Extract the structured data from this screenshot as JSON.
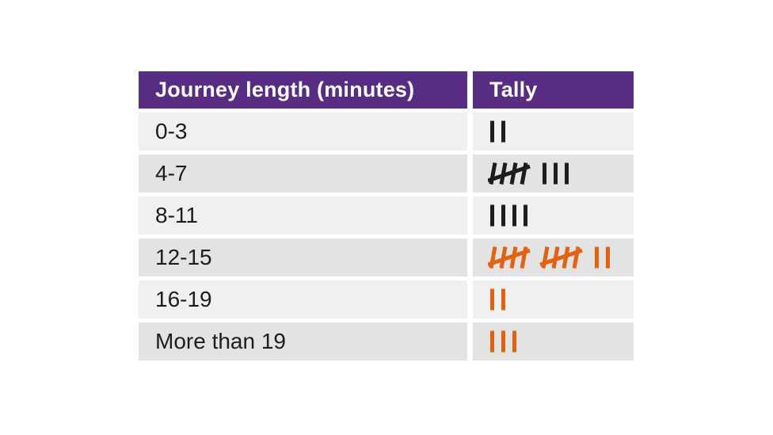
{
  "colors": {
    "header_bg": "#582c83",
    "header_text": "#ffffff",
    "black": "#1d1d1b",
    "orange": "#e4620f",
    "row_light": "#f0f0f1",
    "row_dark": "#e3e3e3"
  },
  "table": {
    "headers": [
      "Journey length (minutes)",
      "Tally"
    ],
    "rows": [
      {
        "label": "0-3",
        "tally": 2,
        "mark_color": "black"
      },
      {
        "label": "4-7",
        "tally": 8,
        "mark_color": "black"
      },
      {
        "label": "8-11",
        "tally": 4,
        "mark_color": "black"
      },
      {
        "label": "12-15",
        "tally": 12,
        "mark_color": "orange"
      },
      {
        "label": "16-19",
        "tally": 2,
        "mark_color": "orange"
      },
      {
        "label": "More than 19",
        "tally": 3,
        "mark_color": "orange"
      }
    ]
  },
  "chart_data": {
    "type": "table",
    "title": "",
    "columns": [
      "Journey length (minutes)",
      "Tally"
    ],
    "categories": [
      "0-3",
      "4-7",
      "8-11",
      "12-15",
      "16-19",
      "More than 19"
    ],
    "values": [
      2,
      8,
      4,
      12,
      2,
      3
    ],
    "legend_position": "none",
    "notes": "Tally marks: groups of five drawn as four strokes with a diagonal strike. Rows 0-3, 4-7, 8-11 in black; rows 12-15, 16-19, More than 19 in orange."
  }
}
